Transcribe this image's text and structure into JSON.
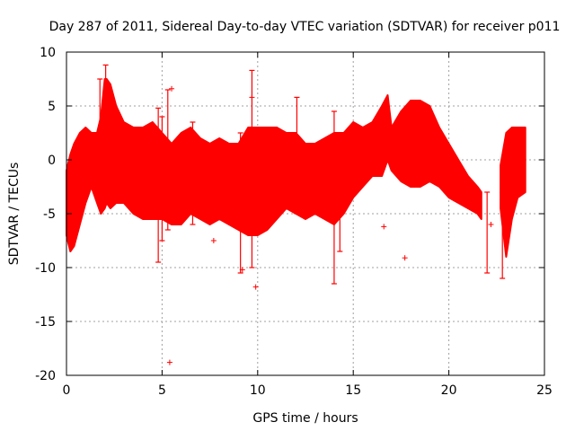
{
  "chart_data": {
    "type": "scatter",
    "title": "Day 287 of 2011, Sidereal Day-to-day VTEC variation (SDTVAR) for receiver p011",
    "xlabel": "GPS time / hours",
    "ylabel": "SDTVAR / TECUs",
    "xlim": [
      0,
      25
    ],
    "ylim": [
      -20,
      10
    ],
    "xticks": [
      0,
      5,
      10,
      15,
      20,
      25
    ],
    "yticks": [
      -20,
      -15,
      -10,
      -5,
      0,
      5,
      10
    ],
    "grid": true,
    "series_color": "#ff0000",
    "band": {
      "x": [
        0.0,
        0.2,
        0.4,
        0.7,
        1.0,
        1.3,
        1.6,
        1.8,
        2.0,
        2.1,
        2.3,
        2.6,
        3.0,
        3.5,
        4.0,
        4.5,
        5.0,
        5.5,
        6.0,
        6.5,
        7.0,
        7.5,
        8.0,
        8.5,
        9.0,
        9.5,
        10.0,
        10.5,
        11.0,
        11.5,
        12.0,
        12.5,
        13.0,
        13.5,
        14.0,
        14.5,
        15.0,
        15.5,
        16.0,
        16.5,
        16.8,
        17.0,
        17.5,
        18.0,
        18.5,
        19.0,
        19.5,
        20.0,
        20.5,
        21.0,
        21.5,
        21.7
      ],
      "upper": [
        -1.0,
        0.5,
        1.5,
        2.5,
        3.0,
        2.5,
        2.5,
        4.0,
        7.5,
        7.5,
        7.0,
        5.0,
        3.5,
        3.0,
        3.0,
        3.5,
        2.5,
        1.5,
        2.5,
        3.0,
        2.0,
        1.5,
        2.0,
        1.5,
        1.5,
        3.0,
        3.0,
        3.0,
        3.0,
        2.5,
        2.5,
        1.5,
        1.5,
        2.0,
        2.5,
        2.5,
        3.5,
        3.0,
        3.5,
        5.0,
        6.0,
        3.0,
        4.5,
        5.5,
        5.5,
        5.0,
        3.0,
        1.5,
        0.0,
        -1.5,
        -2.5,
        -3.0
      ],
      "lower": [
        -7.0,
        -8.5,
        -8.0,
        -6.0,
        -4.0,
        -2.5,
        -4.0,
        -5.0,
        -4.5,
        -4.0,
        -4.5,
        -4.0,
        -4.0,
        -5.0,
        -5.5,
        -5.5,
        -5.5,
        -6.0,
        -6.0,
        -5.0,
        -5.5,
        -6.0,
        -5.5,
        -6.0,
        -6.5,
        -7.0,
        -7.0,
        -6.5,
        -5.5,
        -4.5,
        -5.0,
        -5.5,
        -5.0,
        -5.5,
        -6.0,
        -5.0,
        -3.5,
        -2.5,
        -1.5,
        -1.5,
        0.0,
        -1.0,
        -2.0,
        -2.5,
        -2.5,
        -2.0,
        -2.5,
        -3.5,
        -4.0,
        -4.5,
        -5.0,
        -5.5
      ]
    },
    "band2": {
      "x": [
        22.7,
        23.0,
        23.3,
        23.6,
        24.0
      ],
      "upper": [
        -0.5,
        2.5,
        3.0,
        3.0,
        3.0
      ],
      "lower": [
        -4.5,
        -9.0,
        -5.5,
        -3.5,
        -3.0
      ]
    },
    "spikes": [
      {
        "x": 1.75,
        "low": 0.0,
        "high": 7.5
      },
      {
        "x": 2.05,
        "low": 2.0,
        "high": 8.8
      },
      {
        "x": 4.8,
        "low": -9.5,
        "high": 4.8
      },
      {
        "x": 5.0,
        "low": -7.5,
        "high": 4.0
      },
      {
        "x": 5.3,
        "low": -6.5,
        "high": 6.5
      },
      {
        "x": 6.6,
        "low": -6.0,
        "high": 3.5
      },
      {
        "x": 9.1,
        "low": -10.5,
        "high": 2.5
      },
      {
        "x": 9.7,
        "low": -10.0,
        "high": 8.3
      },
      {
        "x": 12.05,
        "low": -5.0,
        "high": 5.8
      },
      {
        "x": 14.0,
        "low": -11.5,
        "high": 4.5
      },
      {
        "x": 14.3,
        "low": -8.5,
        "high": 2.0
      },
      {
        "x": 22.0,
        "low": -10.5,
        "high": -3.0
      },
      {
        "x": 22.8,
        "low": -11.0,
        "high": -3.0
      }
    ],
    "outliers": [
      {
        "x": 0.15,
        "y": -6.5
      },
      {
        "x": 5.4,
        "y": -18.8
      },
      {
        "x": 5.5,
        "y": 6.6
      },
      {
        "x": 7.7,
        "y": -7.5
      },
      {
        "x": 9.7,
        "y": 5.8
      },
      {
        "x": 9.2,
        "y": -10.2
      },
      {
        "x": 9.9,
        "y": -11.8
      },
      {
        "x": 16.6,
        "y": -6.2
      },
      {
        "x": 17.7,
        "y": -9.1
      },
      {
        "x": 22.2,
        "y": -6.0
      }
    ]
  }
}
